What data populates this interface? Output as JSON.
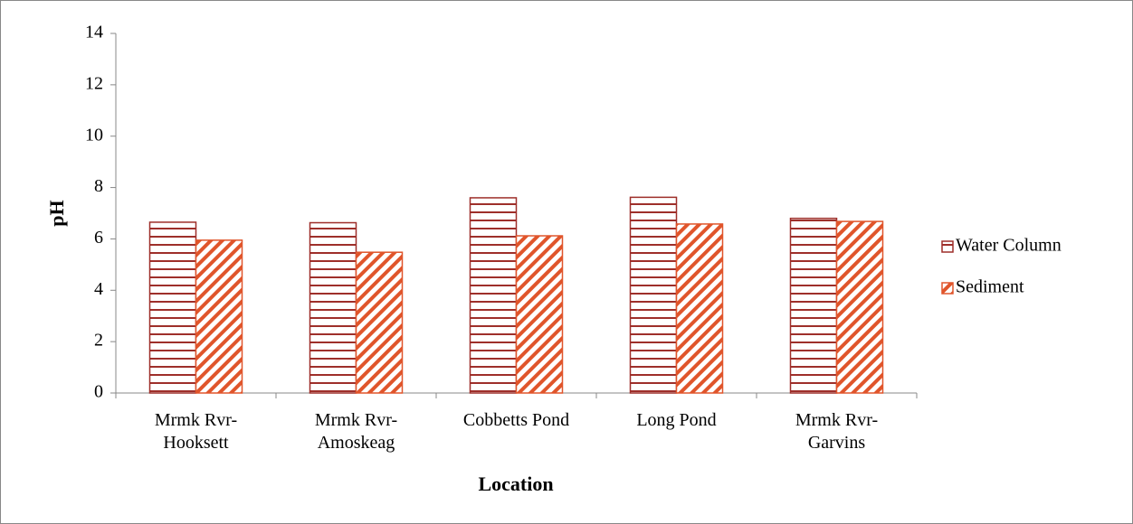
{
  "chart_data": {
    "type": "bar",
    "x_label": "Location",
    "y_label": "pH",
    "categories": [
      "Mrmk Rvr-Hooksett",
      "Mrmk Rvr-Amoskeag",
      "Cobbetts Pond",
      "Long Pond",
      "Mrmk Rvr-Garvins"
    ],
    "series": [
      {
        "name": "Water Column",
        "color": "#9e2f2a",
        "pattern": "horizontal",
        "values": [
          6.65,
          6.63,
          7.6,
          7.62,
          6.8
        ]
      },
      {
        "name": "Sediment",
        "color": "#e0552b",
        "pattern": "diagonal",
        "values": [
          5.95,
          5.48,
          6.12,
          6.58,
          6.68
        ]
      }
    ],
    "ylim": [
      0,
      14
    ],
    "yticks": [
      0,
      2,
      4,
      6,
      8,
      10,
      12,
      14
    ],
    "grid": false,
    "legend": "right"
  }
}
